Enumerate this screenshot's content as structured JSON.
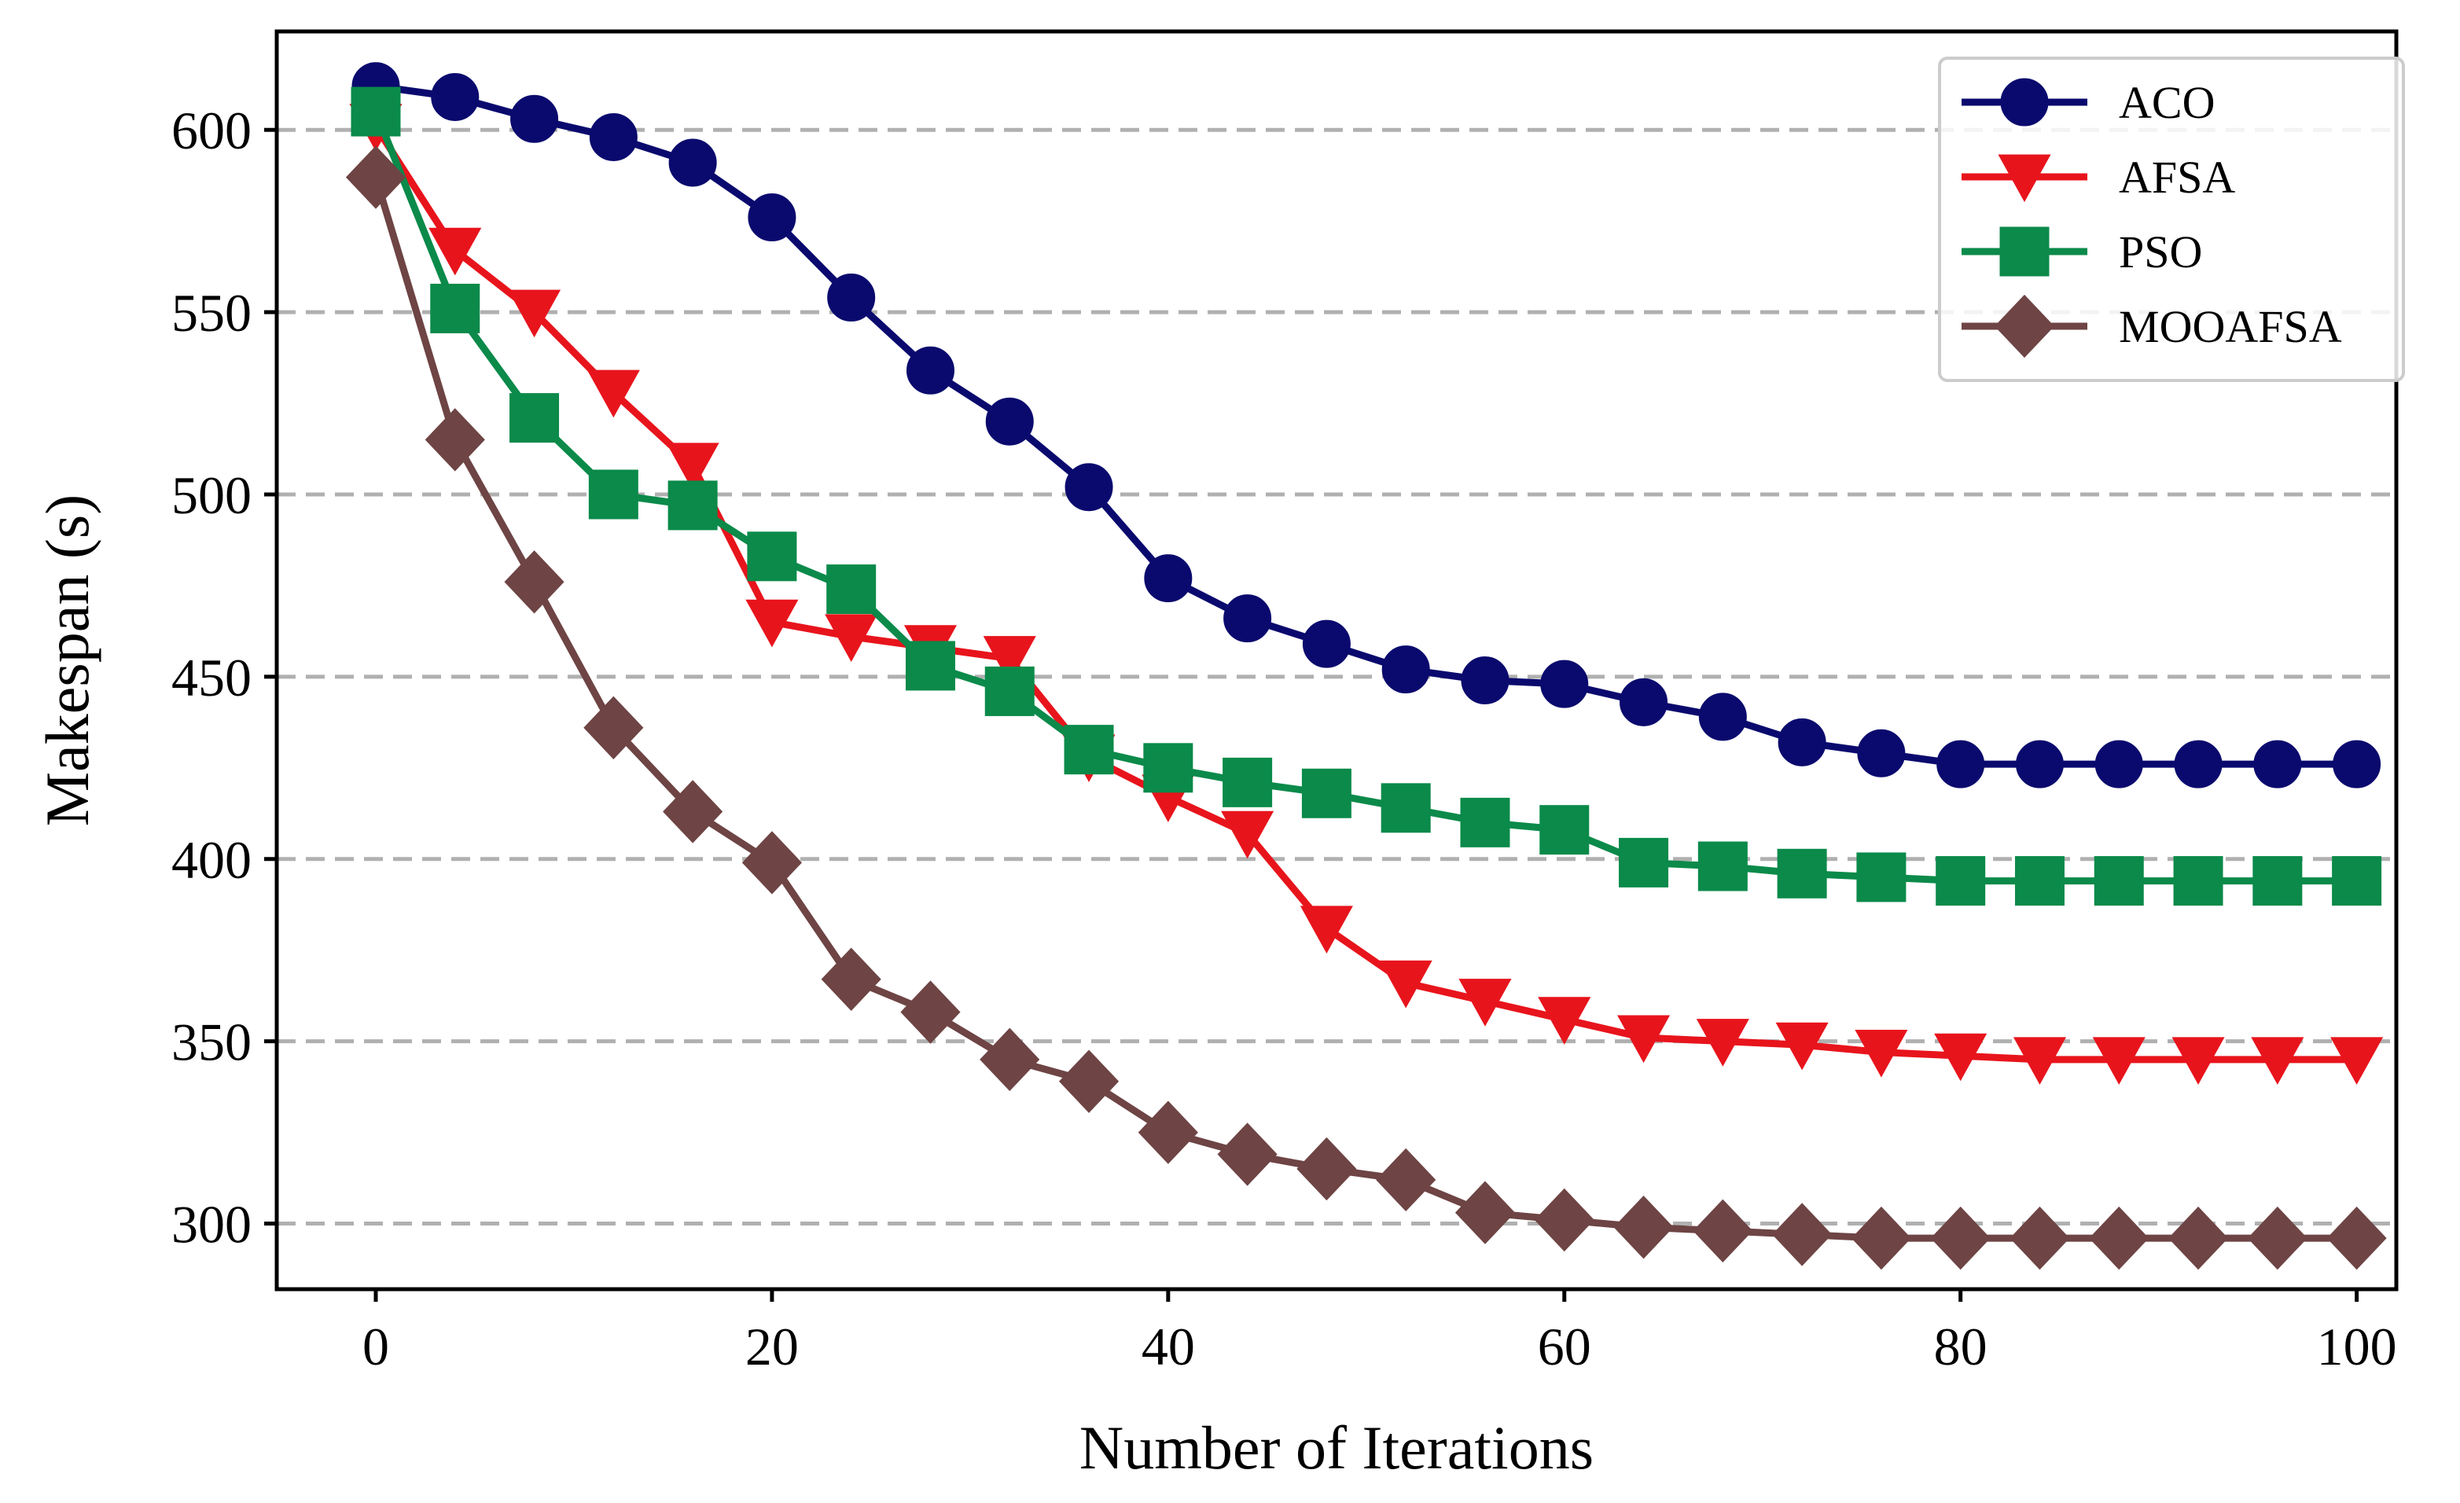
{
  "chart_data": {
    "type": "line",
    "title": "",
    "xlabel": "Number of Iterations",
    "ylabel": "Makespan (s)",
    "xlim": [
      -5,
      102
    ],
    "ylim": [
      282,
      627
    ],
    "xticks": [
      0,
      20,
      40,
      60,
      80,
      100
    ],
    "yticks": [
      300,
      350,
      400,
      450,
      500,
      550,
      600
    ],
    "grid": "horizontal-dashed",
    "legend_position": "top-right",
    "x": [
      0,
      4,
      8,
      12,
      16,
      20,
      24,
      28,
      32,
      36,
      40,
      44,
      48,
      52,
      56,
      60,
      64,
      68,
      72,
      76,
      80,
      84,
      88,
      92,
      96,
      100
    ],
    "series": [
      {
        "name": "ACO",
        "color": "#0a0a6e",
        "marker": "circle",
        "values": [
          612,
          609,
          603,
          598,
          591,
          576,
          554,
          534,
          520,
          502,
          477,
          466,
          459,
          452,
          449,
          448,
          443,
          439,
          432,
          429,
          426,
          426,
          426,
          426,
          426,
          426
        ]
      },
      {
        "name": "AFSA",
        "color": "#e8141c",
        "marker": "triangle-down",
        "values": [
          601,
          567,
          550,
          528,
          508,
          465,
          461,
          458,
          455,
          428,
          417,
          407,
          381,
          366,
          361,
          356,
          351,
          350,
          349,
          347,
          346,
          345,
          345,
          345,
          345,
          345
        ]
      },
      {
        "name": "PSO",
        "color": "#0b8a4a",
        "marker": "square",
        "values": [
          605,
          551,
          521,
          500,
          497,
          483,
          474,
          453,
          446,
          430,
          425,
          421,
          418,
          414,
          410,
          408,
          399,
          398,
          396,
          395,
          394,
          394,
          394,
          394,
          394,
          394
        ]
      },
      {
        "name": "MOOAFSA",
        "color": "#6e4444",
        "marker": "diamond",
        "values": [
          587,
          515,
          476,
          436,
          413,
          399,
          367,
          358,
          345,
          339,
          325,
          319,
          315,
          312,
          303,
          301,
          299,
          298,
          297,
          296,
          296,
          296,
          296,
          296,
          296,
          296
        ]
      }
    ]
  }
}
